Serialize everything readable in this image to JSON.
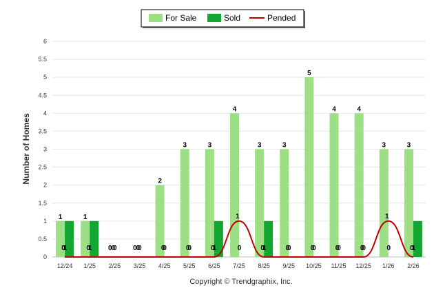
{
  "chart_data": {
    "type": "bar",
    "ylabel": "Number of Homes",
    "xlabel": "",
    "ylim": [
      0,
      6
    ],
    "y_ticks": [
      "0",
      "0.5",
      "1",
      "1.5",
      "2",
      "2.5",
      "3",
      "3.5",
      "4",
      "4.5",
      "5",
      "5.5",
      "6"
    ],
    "grid": true,
    "legend_position": "top-center",
    "categories": [
      "12/24",
      "1/25",
      "2/25",
      "3/25",
      "4/25",
      "5/25",
      "6/25",
      "7/25",
      "8/25",
      "9/25",
      "10/25",
      "11/25",
      "12/25",
      "1/26",
      "2/26"
    ],
    "series": [
      {
        "name": "For Sale",
        "kind": "bar",
        "color": "#9ddf85",
        "values": [
          1,
          1,
          0,
          0,
          2,
          3,
          3,
          4,
          3,
          3,
          5,
          4,
          4,
          3,
          3
        ]
      },
      {
        "name": "Sold",
        "kind": "bar",
        "color": "#13a631",
        "values": [
          1,
          1,
          0,
          0,
          0,
          0,
          1,
          0,
          1,
          0,
          0,
          0,
          0,
          0,
          1
        ]
      },
      {
        "name": "Pended",
        "kind": "line",
        "color": "#c00000",
        "values": [
          0,
          0,
          0,
          0,
          0,
          0,
          0,
          1,
          0,
          0,
          0,
          0,
          0,
          1,
          0
        ]
      }
    ],
    "credit": "Copyright © Trendgraphix, Inc."
  }
}
